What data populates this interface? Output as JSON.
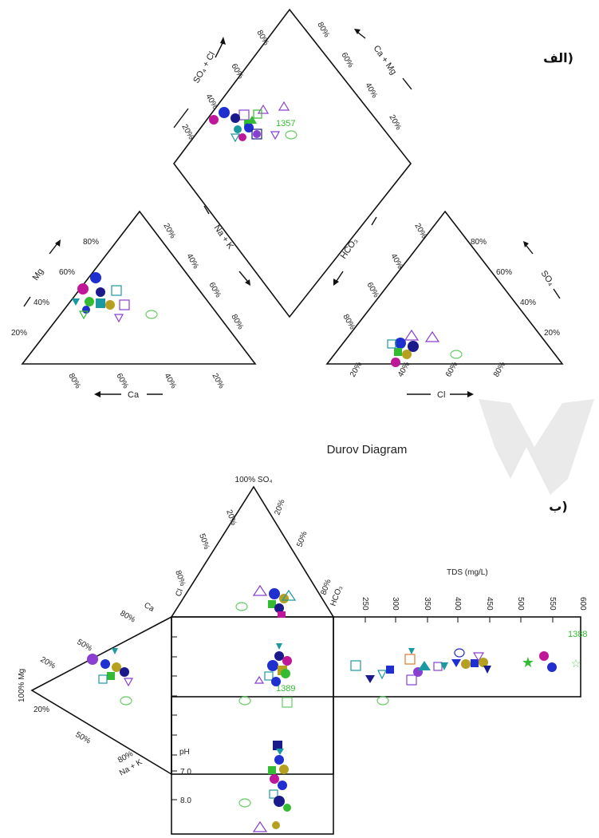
{
  "panel_a": {
    "label": "الف)",
    "diamond": {
      "left_axis": "SO₄ + Cl",
      "right_axis": "Ca + Mg",
      "left_ticks": [
        "80%",
        "60%",
        "40%",
        "20%"
      ],
      "right_ticks": [
        "80%",
        "60%",
        "40%",
        "20%"
      ],
      "annotation": "1357"
    },
    "left_triangle": {
      "side_axis": "Mg",
      "bottom_axis": "Ca",
      "inner_axis": "Na + K",
      "side_ticks": [
        "80%",
        "60%",
        "40%",
        "20%"
      ],
      "bottom_ticks": [
        "80%",
        "60%",
        "40%",
        "20%"
      ],
      "inner_ticks": [
        "20%",
        "40%",
        "60%",
        "80%"
      ]
    },
    "right_triangle": {
      "side_axis": "SO₄",
      "bottom_axis": "Cl",
      "inner_axis": "HCO₃",
      "side_ticks": [
        "80%",
        "60%",
        "40%",
        "20%"
      ],
      "bottom_ticks": [
        "20%",
        "40%",
        "60%",
        "80%"
      ],
      "inner_ticks": [
        "20%",
        "40%",
        "60%",
        "80%"
      ]
    }
  },
  "panel_b": {
    "title": "Durov Diagram",
    "label": "ب)",
    "top_triangle": {
      "apex": "100% SO₄",
      "left_ticks": [
        "20%",
        "50%",
        "80%"
      ],
      "right_ticks": [
        "20%",
        "50%",
        "80%"
      ],
      "left_axis": "Cl",
      "right_axis": "HCO₃"
    },
    "left_triangle": {
      "apex": "100% Mg",
      "upper_ticks": [
        "80%",
        "50%",
        "20%"
      ],
      "upper_axis": "Ca",
      "lower_ticks": [
        "20%",
        "50%",
        "80%"
      ],
      "lower_axis": "Na + K"
    },
    "tds": {
      "label": "TDS (mg/L)",
      "ticks": [
        "250",
        "300",
        "350",
        "400",
        "450",
        "500",
        "550",
        "600"
      ],
      "annotation": "1388"
    },
    "ph": {
      "label": "pH",
      "ticks": [
        "7.0",
        "8.0"
      ],
      "annotation": "1389"
    }
  },
  "colors": {
    "blue": "#1f2fd0",
    "navy": "#1a1a8c",
    "magenta": "#c0169a",
    "green": "#33bb33",
    "teal": "#1a9aa0",
    "purple": "#8a3fd0",
    "olive": "#b5a020",
    "orange": "#e07830",
    "lightgreen": "#66cc66"
  }
}
